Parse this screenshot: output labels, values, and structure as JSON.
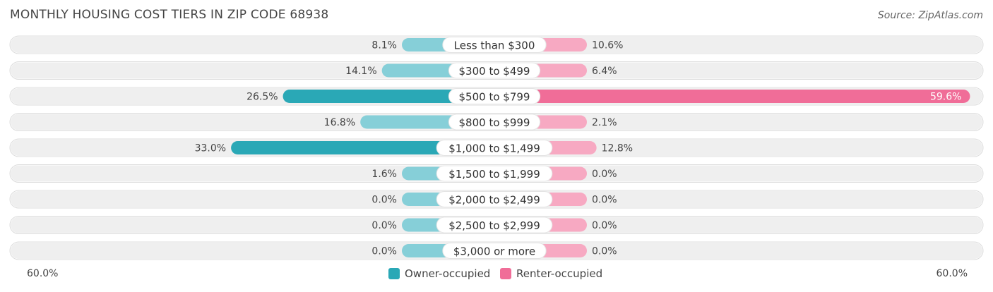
{
  "header": {
    "title": "MONTHLY HOUSING COST TIERS IN ZIP CODE 68938",
    "source": "Source: ZipAtlas.com"
  },
  "colors": {
    "owner": "#2aa8b6",
    "owner_light": "#86cfd8",
    "renter": "#f06d98",
    "renter_light": "#f7a9c2",
    "row_bg": "#efefef"
  },
  "chart_data": {
    "type": "bar",
    "orientation": "horizontal-diverging",
    "categories": [
      "Less than $300",
      "$300 to $499",
      "$500 to $799",
      "$800 to $999",
      "$1,000 to $1,499",
      "$1,500 to $1,999",
      "$2,000 to $2,499",
      "$2,500 to $2,999",
      "$3,000 or more"
    ],
    "series": [
      {
        "name": "Owner-occupied",
        "values": [
          8.1,
          14.1,
          26.5,
          16.8,
          33.0,
          1.6,
          0.0,
          0.0,
          0.0
        ],
        "labels": [
          "8.1%",
          "14.1%",
          "26.5%",
          "16.8%",
          "33.0%",
          "1.6%",
          "0.0%",
          "0.0%",
          "0.0%"
        ]
      },
      {
        "name": "Renter-occupied",
        "values": [
          10.6,
          6.4,
          59.6,
          2.1,
          12.8,
          0.0,
          0.0,
          0.0,
          0.0
        ],
        "labels": [
          "10.6%",
          "6.4%",
          "59.6%",
          "2.1%",
          "12.8%",
          "0.0%",
          "0.0%",
          "0.0%",
          "0.0%"
        ]
      }
    ],
    "xlim": [
      -60,
      60
    ],
    "axis_labels": {
      "left": "60.0%",
      "right": "60.0%"
    },
    "legend_position": "bottom-center"
  }
}
